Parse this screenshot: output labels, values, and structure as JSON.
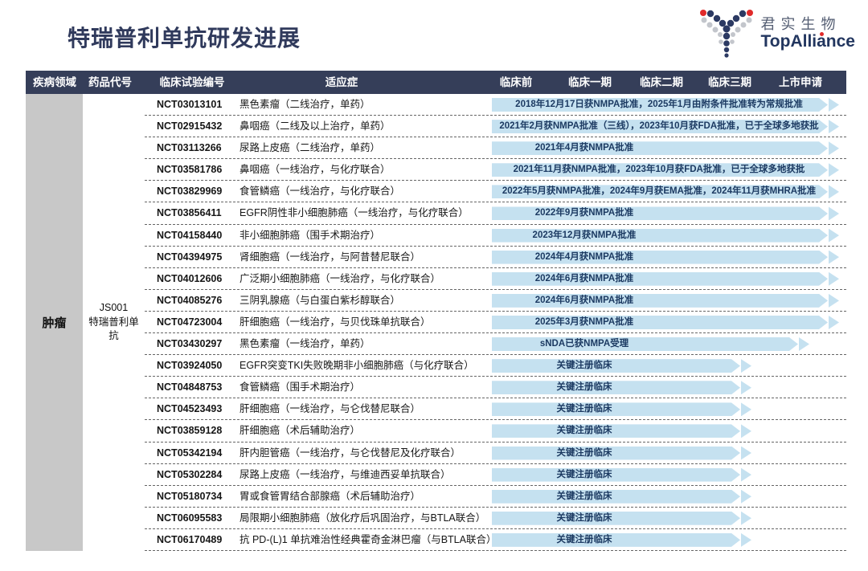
{
  "slide": {
    "title": "特瑞普利单抗研发进展",
    "logo": {
      "company_cn": "君实生物",
      "company_en": "TopAlliance"
    }
  },
  "table": {
    "headers": {
      "disease_area": "疾病领域",
      "drug_code": "药品代号",
      "trial_id": "临床试验编号",
      "indication": "适应症",
      "phases": [
        "临床前",
        "临床一期",
        "临床二期",
        "临床三期",
        "上市申请"
      ]
    },
    "disease_area": "肿瘤",
    "drug_code": "JS001\n特瑞普利单抗",
    "rows": [
      {
        "trial_id": "NCT03013101",
        "indication": "黑色素瘤（二线治疗，单药）",
        "status": "2018年12月17日获NMPA批准，2025年1月由附条件批准转为常规批准",
        "stage": "approved"
      },
      {
        "trial_id": "NCT02915432",
        "indication": "鼻咽癌（二线及以上治疗，单药）",
        "status": "2021年2月获NMPA批准（三线），2023年10月获FDA批准，已于全球多地获批",
        "stage": "approved"
      },
      {
        "trial_id": "NCT03113266",
        "indication": "尿路上皮癌（二线治疗，单药）",
        "status": "2021年4月获NMPA批准",
        "stage": "approved"
      },
      {
        "trial_id": "NCT03581786",
        "indication": "鼻咽癌（一线治疗，与化疗联合）",
        "status": "2021年11月获NMPA批准，2023年10月获FDA批准，已于全球多地获批",
        "stage": "approved"
      },
      {
        "trial_id": "NCT03829969",
        "indication": "食管鳞癌（一线治疗，与化疗联合）",
        "status": "2022年5月获NMPA批准，2024年9月获EMA批准，2024年11月获MHRA批准",
        "stage": "approved"
      },
      {
        "trial_id": "NCT03856411",
        "indication": "EGFR阴性非小细胞肺癌（一线治疗，与化疗联合）",
        "status": "2022年9月获NMPA批准",
        "stage": "approved"
      },
      {
        "trial_id": "NCT04158440",
        "indication": "非小细胞肺癌（围手术期治疗）",
        "status": "2023年12月获NMPA批准",
        "stage": "approved"
      },
      {
        "trial_id": "NCT04394975",
        "indication": "肾细胞癌（一线治疗，与阿昔替尼联合）",
        "status": "2024年4月获NMPA批准",
        "stage": "approved"
      },
      {
        "trial_id": "NCT04012606",
        "indication": "广泛期小细胞肺癌（一线治疗，与化疗联合）",
        "status": "2024年6月获NMPA批准",
        "stage": "approved"
      },
      {
        "trial_id": "NCT04085276",
        "indication": "三阴乳腺癌（与白蛋白紫杉醇联合）",
        "status": "2024年6月获NMPA批准",
        "stage": "approved"
      },
      {
        "trial_id": "NCT04723004",
        "indication": "肝细胞癌（一线治疗，与贝伐珠单抗联合）",
        "status": "2025年3月获NMPA批准",
        "stage": "approved"
      },
      {
        "trial_id": "NCT03430297",
        "indication": "黑色素瘤（一线治疗，单药）",
        "status": "sNDA已获NMPA受理",
        "stage": "snda"
      },
      {
        "trial_id": "NCT03924050",
        "indication": "EGFR突变TKI失败晚期非小细胞肺癌（与化疗联合）",
        "status": "关键注册临床",
        "stage": "pivotal"
      },
      {
        "trial_id": "NCT04848753",
        "indication": "食管鳞癌（围手术期治疗）",
        "status": "关键注册临床",
        "stage": "pivotal"
      },
      {
        "trial_id": "NCT04523493",
        "indication": "肝细胞癌（一线治疗，与仑伐替尼联合）",
        "status": "关键注册临床",
        "stage": "pivotal"
      },
      {
        "trial_id": "NCT03859128",
        "indication": "肝细胞癌（术后辅助治疗）",
        "status": "关键注册临床",
        "stage": "pivotal"
      },
      {
        "trial_id": "NCT05342194",
        "indication": "肝内胆管癌（一线治疗，与仑伐替尼及化疗联合）",
        "status": "关键注册临床",
        "stage": "pivotal"
      },
      {
        "trial_id": "NCT05302284",
        "indication": "尿路上皮癌（一线治疗，与维迪西妥单抗联合）",
        "status": "关键注册临床",
        "stage": "pivotal"
      },
      {
        "trial_id": "NCT05180734",
        "indication": "胃或食管胃结合部腺癌（术后辅助治疗）",
        "status": "关键注册临床",
        "stage": "pivotal"
      },
      {
        "trial_id": "NCT06095583",
        "indication": "局限期小细胞肺癌（放化疗后巩固治疗，与BTLA联合）",
        "status": "关键注册临床",
        "stage": "pivotal"
      },
      {
        "trial_id": "NCT06170489",
        "indication": "抗 PD-(L)1 单抗难治性经典霍奇金淋巴瘤（与BTLA联合）",
        "status": "关键注册临床",
        "stage": "pivotal"
      }
    ]
  },
  "colors": {
    "header_bg": "#353e59",
    "title_navy": "#303a5c",
    "bar_fill": "#c5e1f0",
    "bar_text": "#1c3a62",
    "disease_cell_bg": "#c8c8c8",
    "brand_navy": "#2c3a63",
    "brand_red": "#e02a2a",
    "brand_gray": "#c3c6cc"
  }
}
